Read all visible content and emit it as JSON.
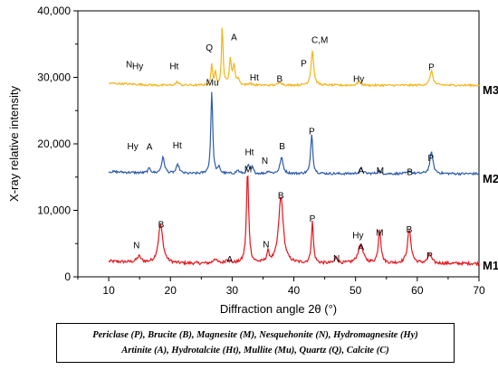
{
  "chart_data": {
    "type": "line",
    "xlabel": "Diffraction angle 2θ (°)",
    "ylabel": "X-ray relative intensity",
    "xlim": [
      5,
      70
    ],
    "ylim": [
      0,
      40000
    ],
    "xticks": [
      10,
      20,
      30,
      40,
      50,
      60,
      70
    ],
    "yticks": [
      0,
      10000,
      20000,
      30000,
      40000
    ],
    "ytick_labels": [
      "0",
      "10,000",
      "20,000",
      "30,000",
      "40,000"
    ],
    "grid": false,
    "series": [
      {
        "name": "M1",
        "color": "#e8141c",
        "baseline": 2000,
        "noise": 450,
        "peaks": [
          [
            14.9,
            900,
            0.4
          ],
          [
            18.4,
            5800,
            0.45
          ],
          [
            27.2,
            700,
            0.3
          ],
          [
            29.2,
            600,
            0.3
          ],
          [
            32.5,
            13900,
            0.22
          ],
          [
            35.8,
            1500,
            0.25
          ],
          [
            37.9,
            10000,
            0.45
          ],
          [
            43.0,
            6200,
            0.2
          ],
          [
            46.9,
            900,
            0.25
          ],
          [
            50.8,
            2800,
            0.5
          ],
          [
            53.9,
            5200,
            0.25
          ],
          [
            58.7,
            5000,
            0.35
          ],
          [
            62.0,
            1400,
            0.35
          ]
        ],
        "labels": [
          [
            "N",
            14.5,
            4300
          ],
          [
            "B",
            18.5,
            7400
          ],
          [
            "M",
            32.6,
            15700
          ],
          [
            "A",
            29.6,
            2200
          ],
          [
            "N",
            35.5,
            4400
          ],
          [
            "B",
            37.9,
            11800
          ],
          [
            "P",
            43.0,
            8300
          ],
          [
            "N",
            46.9,
            2300
          ],
          [
            "Hy",
            50.4,
            5800
          ],
          [
            "A",
            50.9,
            4000
          ],
          [
            "M",
            53.9,
            6200
          ],
          [
            "B",
            58.7,
            6700
          ],
          [
            "P",
            62.0,
            2700
          ]
        ]
      },
      {
        "name": "M2",
        "color": "#2e5cab",
        "baseline": 15500,
        "noise": 350,
        "peaks": [
          [
            16.6,
            700,
            0.3
          ],
          [
            18.8,
            2400,
            0.3
          ],
          [
            21.2,
            1300,
            0.3
          ],
          [
            26.7,
            12500,
            0.18
          ],
          [
            27.9,
            900,
            0.2
          ],
          [
            30.9,
            500,
            0.25
          ],
          [
            32.6,
            1300,
            0.2
          ],
          [
            33.3,
            900,
            0.2
          ],
          [
            35.9,
            400,
            0.25
          ],
          [
            38.0,
            2400,
            0.3
          ],
          [
            42.9,
            6100,
            0.2
          ],
          [
            50.9,
            800,
            0.3
          ],
          [
            53.8,
            400,
            0.3
          ],
          [
            58.8,
            400,
            0.3
          ],
          [
            62.3,
            3200,
            0.3
          ]
        ],
        "labels": [
          [
            "Hy",
            13.9,
            19200
          ],
          [
            "A",
            16.6,
            19100
          ],
          [
            "Ht",
            21.1,
            19300
          ],
          [
            "Mu",
            26.8,
            28800
          ],
          [
            "Ht",
            32.8,
            18300
          ],
          [
            "N",
            35.3,
            17000
          ],
          [
            "B",
            38.1,
            19200
          ],
          [
            "P",
            42.9,
            21400
          ],
          [
            "A",
            50.9,
            15500
          ],
          [
            "M",
            54.0,
            15500
          ],
          [
            "B",
            58.8,
            15300
          ],
          [
            "P",
            62.2,
            17400
          ]
        ]
      },
      {
        "name": "M3",
        "color": "#f5b41a",
        "baseline": 28800,
        "noise": 300,
        "peaks": [
          [
            21.1,
            500,
            0.3
          ],
          [
            26.7,
            3200,
            0.15
          ],
          [
            27.3,
            1800,
            0.15
          ],
          [
            28.4,
            9000,
            0.15
          ],
          [
            29.7,
            3700,
            0.2
          ],
          [
            30.3,
            3000,
            0.2
          ],
          [
            31.0,
            900,
            0.2
          ],
          [
            32.9,
            300,
            0.25
          ],
          [
            37.8,
            500,
            0.3
          ],
          [
            43.0,
            5200,
            0.25
          ],
          [
            50.6,
            600,
            0.3
          ],
          [
            62.3,
            2100,
            0.3
          ]
        ],
        "labels": [
          [
            "N",
            13.3,
            31500
          ],
          [
            "Hy",
            14.7,
            31200
          ],
          [
            "Ht",
            20.6,
            31200
          ],
          [
            "Q",
            26.3,
            34000
          ],
          [
            "A",
            30.3,
            35600
          ],
          [
            "Ht",
            33.6,
            29500
          ],
          [
            "B",
            37.7,
            29300
          ],
          [
            "P",
            41.6,
            31600
          ],
          [
            "C,M",
            44.2,
            35200
          ],
          [
            "Hy",
            50.5,
            29300
          ],
          [
            "P",
            62.3,
            31100
          ]
        ]
      }
    ]
  },
  "legend": {
    "line1": "Periclase (P), Brucite (B), Magnesite (M), Nesquehonite (N), Hydromagnesite (Hy)",
    "line2": "Artinite (A), Hydrotalcite (Ht), Mullite (Mu), Quartz (Q), Calcite (C)"
  }
}
